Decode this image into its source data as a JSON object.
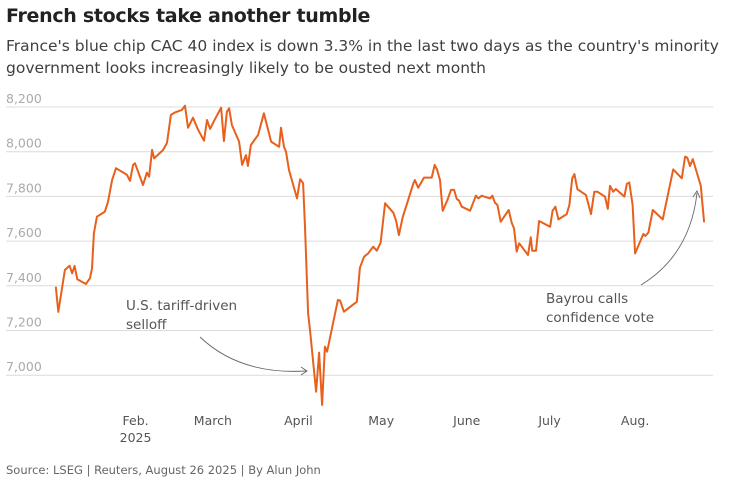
{
  "header": {
    "title": "French stocks take another tumble",
    "subtitle": "France's blue chip CAC 40 index is down 3.3% in the last two days as the country's minority government looks increasingly likely to be ousted next month"
  },
  "footer": {
    "source": "Source: LSEG | Reuters, August 26 2025 | By Alun John"
  },
  "chart_data": {
    "type": "line",
    "title": "French stocks take another tumble",
    "xlabel": "",
    "ylabel": "",
    "x_unit": "days since 2025-01-01",
    "xlim": [
      0,
      240
    ],
    "ylim": [
      6850,
      8250
    ],
    "grid": true,
    "line_color": "#e8601c",
    "y_ticks": [
      {
        "value": 7000,
        "label": "7,000"
      },
      {
        "value": 7200,
        "label": "7,200"
      },
      {
        "value": 7400,
        "label": "7,400"
      },
      {
        "value": 7600,
        "label": "7,600"
      },
      {
        "value": 7800,
        "label": "7,800"
      },
      {
        "value": 8000,
        "label": "8,000"
      },
      {
        "value": 8200,
        "label": "8,200"
      }
    ],
    "x_ticks": [
      {
        "value": 31,
        "label": "Feb.",
        "sublabel": "2025"
      },
      {
        "value": 59,
        "label": "March"
      },
      {
        "value": 90,
        "label": "April"
      },
      {
        "value": 120,
        "label": "May"
      },
      {
        "value": 151,
        "label": "June"
      },
      {
        "value": 181,
        "label": "July"
      },
      {
        "value": 212,
        "label": "Aug."
      }
    ],
    "series": [
      {
        "name": "CAC 40",
        "x": [
          2.1,
          3.0,
          5.4,
          7.1,
          8.0,
          8.9,
          9.9,
          13.0,
          14.5,
          15.2,
          15.9,
          17.0,
          19.9,
          21.0,
          22.5,
          23.9,
          27.9,
          29.0,
          30.1,
          30.8,
          33.7,
          35.1,
          35.9,
          37.0,
          37.7,
          41.0,
          42.4,
          43.8,
          45.3,
          47.8,
          48.9,
          50.0,
          51.8,
          53.6,
          55.8,
          56.9,
          58.0,
          59.8,
          62.0,
          63.0,
          64.1,
          64.9,
          65.9,
          68.5,
          69.6,
          71.0,
          71.7,
          72.8,
          75.4,
          77.5,
          80.1,
          83.0,
          83.7,
          84.8,
          85.5,
          86.6,
          89.5,
          90.6,
          91.7,
          92.4,
          93.5,
          94.2,
          96.4,
          97.5,
          98.6,
          99.6,
          100.4,
          101.4,
          104.3,
          105.1,
          106.5,
          111.2,
          112.3,
          113.8,
          115.3,
          117.1,
          118.4,
          119.8,
          121.4,
          124.4,
          125.4,
          126.4,
          127.8,
          129.2,
          131.6,
          132.2,
          133.4,
          135.5,
          138.3,
          139.4,
          140.3,
          141.3,
          142.3,
          144.0,
          145.3,
          146.4,
          147.4,
          148.2,
          149.2,
          152.2,
          154.3,
          155.2,
          156.4,
          159.4,
          160.3,
          161.2,
          162.1,
          163.3,
          166.2,
          167.3,
          168.1,
          169.1,
          170.0,
          173.2,
          174.2,
          174.7,
          176.1,
          177.2,
          181.2,
          182.1,
          183.1,
          184.2,
          187.2,
          188.2,
          189.2,
          190.0,
          191.1,
          194.2,
          196.0,
          197.2,
          198.3,
          201.1,
          202.1,
          202.9,
          204.1,
          205.0,
          208.1,
          209.0,
          209.9,
          211.1,
          212.0,
          215.0,
          215.7,
          216.8,
          218.4,
          222.0,
          225.8,
          228.9,
          230.1,
          230.9,
          231.9,
          232.9,
          235.8,
          237.0
        ],
        "values": [
          7396,
          7283,
          7471,
          7490,
          7456,
          7489,
          7429,
          7408,
          7434,
          7478,
          7635,
          7709,
          7732,
          7776,
          7873,
          7926,
          7896,
          7870,
          7941,
          7948,
          7851,
          7906,
          7888,
          8008,
          7970,
          8008,
          8040,
          8164,
          8176,
          8187,
          8206,
          8107,
          8152,
          8100,
          8049,
          8142,
          8102,
          8146,
          8197,
          8048,
          8179,
          8194,
          8119,
          8045,
          7941,
          7985,
          7936,
          8030,
          8075,
          8172,
          8045,
          8022,
          8107,
          8022,
          8000,
          7918,
          7791,
          7877,
          7859,
          7664,
          7277,
          7202,
          6926,
          7101,
          6867,
          7128,
          7105,
          7165,
          7337,
          7334,
          7284,
          7329,
          7481,
          7530,
          7545,
          7575,
          7557,
          7593,
          7769,
          7727,
          7691,
          7627,
          7707,
          7762,
          7856,
          7873,
          7839,
          7884,
          7884,
          7941,
          7918,
          7873,
          7735,
          7784,
          7829,
          7829,
          7788,
          7781,
          7754,
          7736,
          7803,
          7791,
          7803,
          7791,
          7803,
          7772,
          7762,
          7687,
          7739,
          7682,
          7657,
          7553,
          7590,
          7538,
          7617,
          7557,
          7557,
          7690,
          7664,
          7736,
          7754,
          7697,
          7721,
          7762,
          7881,
          7900,
          7832,
          7806,
          7721,
          7821,
          7821,
          7799,
          7744,
          7847,
          7821,
          7833,
          7799,
          7856,
          7862,
          7762,
          7545,
          7632,
          7623,
          7638,
          7739,
          7697,
          7921,
          7881,
          7978,
          7973,
          7936,
          7967,
          7847,
          7684
        ]
      }
    ],
    "annotations": [
      {
        "lines": [
          "U.S. tariff-driven",
          "selloff"
        ],
        "target_day": 94,
        "target_value": 6980
      },
      {
        "lines": [
          "Bayrou calls",
          "confidence vote"
        ],
        "target_day": 234,
        "target_value": 7830
      }
    ]
  }
}
